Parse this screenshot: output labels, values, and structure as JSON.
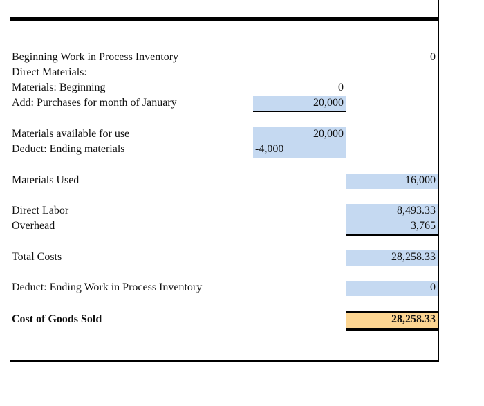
{
  "rows": {
    "beginning_wip": {
      "label": "Beginning Work in Process Inventory",
      "value": "0"
    },
    "direct_materials": {
      "label": "Direct Materials:"
    },
    "materials_beginning": {
      "label": "Materials: Beginning",
      "value": "0"
    },
    "purchases": {
      "label": "Add: Purchases for month of January",
      "value": "20,000"
    },
    "materials_available": {
      "label": "Materials available for use",
      "value": "20,000"
    },
    "ending_materials": {
      "label": "Deduct: Ending materials",
      "value": "-4,000"
    },
    "materials_used": {
      "label": "Materials Used",
      "value": "16,000"
    },
    "direct_labor": {
      "label": "Direct Labor",
      "value": "8,493.33"
    },
    "overhead": {
      "label": "Overhead",
      "value": "3,765"
    },
    "total_costs": {
      "label": "Total Costs",
      "value": "28,258.33"
    },
    "ending_wip": {
      "label": "Deduct: Ending Work in Process Inventory",
      "value": "0"
    },
    "cogs": {
      "label": "Cost of Goods Sold",
      "value": "28,258.33"
    }
  },
  "colors": {
    "input_fill": "#c5d9f1",
    "total_fill": "#fcd592"
  }
}
